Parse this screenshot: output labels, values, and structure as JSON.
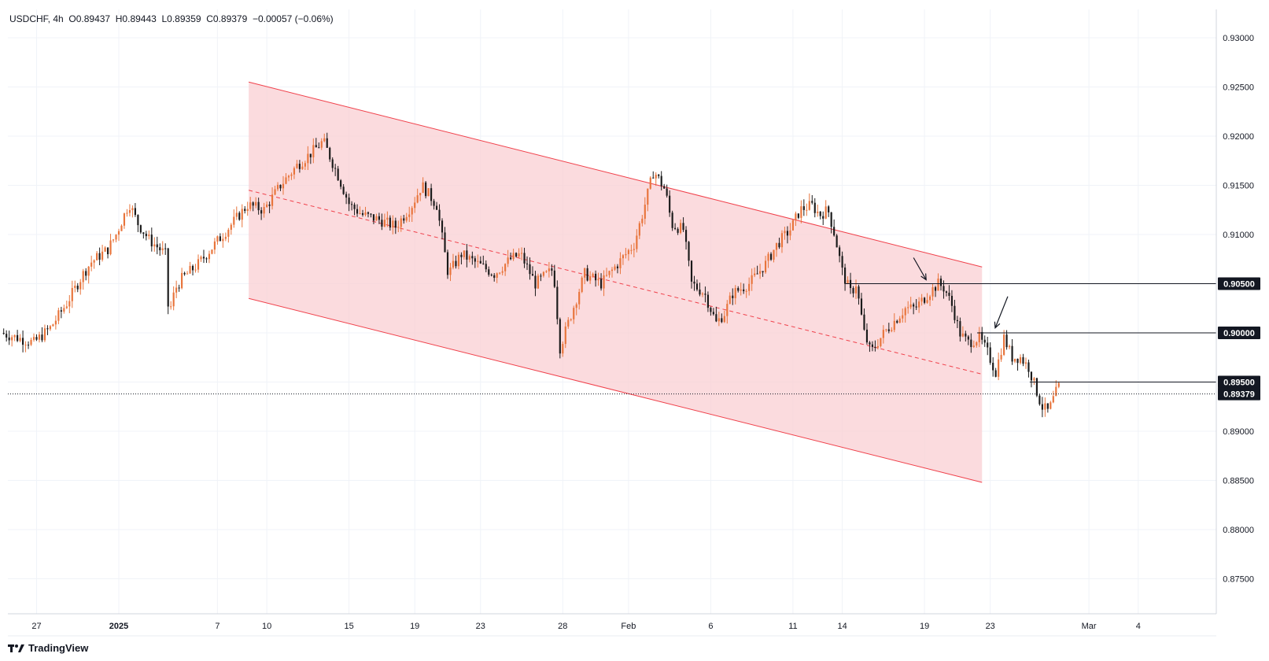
{
  "header": {
    "symbol": "USDCHF",
    "interval": "4h",
    "open": "O0.89437",
    "high": "H0.89443",
    "low": "L0.89359",
    "close": "C0.89379",
    "change": "−0.00057 (−0.06%)"
  },
  "branding": {
    "logo_text": "TradingView"
  },
  "colors": {
    "bull": "#e8743b",
    "bear": "#1a1a1a",
    "channel_fill": "#f9cfd3",
    "channel_line": "#f0414b",
    "grid": "#f0f3f8",
    "axis_text": "#131722"
  },
  "chart_data": {
    "type": "candlestick",
    "title": "USDCHF, 4h",
    "ylim": [
      0.8725,
      0.9335
    ],
    "x_ticks": [
      {
        "label": "27",
        "day": -5
      },
      {
        "label": "2025",
        "day": 0
      },
      {
        "label": "7",
        "day": 6
      },
      {
        "label": "10",
        "day": 9
      },
      {
        "label": "15",
        "day": 14
      },
      {
        "label": "19",
        "day": 18
      },
      {
        "label": "23",
        "day": 22
      },
      {
        "label": "28",
        "day": 27
      },
      {
        "label": "Feb",
        "day": 31
      },
      {
        "label": "6",
        "day": 36
      },
      {
        "label": "11",
        "day": 41
      },
      {
        "label": "14",
        "day": 44
      },
      {
        "label": "19",
        "day": 49
      },
      {
        "label": "23",
        "day": 53
      },
      {
        "label": "Mar",
        "day": 59
      },
      {
        "label": "4",
        "day": 62
      }
    ],
    "y_ticks": [
      "0.93000",
      "0.92500",
      "0.92000",
      "0.91500",
      "0.91000",
      "0.90500",
      "0.90000",
      "0.89500",
      "0.89000",
      "0.88500",
      "0.88000",
      "0.87500"
    ],
    "price_labels": [
      {
        "label": "0.90500",
        "value": 0.905
      },
      {
        "label": "0.90000",
        "value": 0.9
      },
      {
        "label": "0.89500",
        "value": 0.895
      },
      {
        "label": "0.89379",
        "value": 0.89379
      }
    ],
    "current_price": 0.89379,
    "horizontal_levels": [
      {
        "value": 0.905,
        "from_day": 44.2
      },
      {
        "value": 0.9,
        "from_day": 52.2
      },
      {
        "value": 0.895,
        "from_day": 55.4
      }
    ],
    "channel": {
      "start_day": 7.9,
      "end_day": 52.5,
      "upper": [
        0.9255,
        0.9067
      ],
      "middle": [
        0.9145,
        0.8958
      ],
      "lower": [
        0.9035,
        0.8848
      ]
    },
    "arrows": [
      {
        "direction": "down-right",
        "day": 49.1,
        "price": 0.9054
      },
      {
        "direction": "down-left",
        "day": 53.3,
        "price": 0.9005
      }
    ],
    "path_anchors": [
      [
        -7.0,
        0.9
      ],
      [
        -6.0,
        0.8995
      ],
      [
        -5.0,
        0.899
      ],
      [
        -4.0,
        0.9005
      ],
      [
        -3.0,
        0.903
      ],
      [
        -2.0,
        0.906
      ],
      [
        -1.5,
        0.9072
      ],
      [
        -0.5,
        0.9085
      ],
      [
        0.0,
        0.91
      ],
      [
        0.8,
        0.9132
      ],
      [
        1.3,
        0.9112
      ],
      [
        2.0,
        0.9095
      ],
      [
        3.0,
        0.908
      ],
      [
        3.2,
        0.9017
      ],
      [
        3.6,
        0.9045
      ],
      [
        4.0,
        0.9055
      ],
      [
        5.0,
        0.907
      ],
      [
        6.0,
        0.909
      ],
      [
        7.0,
        0.911
      ],
      [
        8.0,
        0.913
      ],
      [
        9.0,
        0.9125
      ],
      [
        10.0,
        0.915
      ],
      [
        11.0,
        0.917
      ],
      [
        12.0,
        0.9185
      ],
      [
        12.6,
        0.9195
      ],
      [
        13.5,
        0.916
      ],
      [
        14.2,
        0.913
      ],
      [
        15.0,
        0.912
      ],
      [
        16.0,
        0.9115
      ],
      [
        17.0,
        0.9108
      ],
      [
        18.0,
        0.913
      ],
      [
        18.6,
        0.915
      ],
      [
        19.5,
        0.913
      ],
      [
        20.2,
        0.906
      ],
      [
        21.0,
        0.908
      ],
      [
        22.0,
        0.907
      ],
      [
        23.0,
        0.906
      ],
      [
        24.0,
        0.9075
      ],
      [
        24.6,
        0.908
      ],
      [
        25.5,
        0.905
      ],
      [
        26.6,
        0.9065
      ],
      [
        27.0,
        0.8985
      ],
      [
        27.5,
        0.901
      ],
      [
        28.5,
        0.906
      ],
      [
        29.5,
        0.905
      ],
      [
        30.5,
        0.907
      ],
      [
        31.5,
        0.909
      ],
      [
        32.0,
        0.912
      ],
      [
        32.7,
        0.9165
      ],
      [
        33.4,
        0.9145
      ],
      [
        33.8,
        0.911
      ],
      [
        34.5,
        0.9105
      ],
      [
        35.0,
        0.905
      ],
      [
        35.8,
        0.904
      ],
      [
        36.5,
        0.901
      ],
      [
        37.0,
        0.902
      ],
      [
        37.5,
        0.904
      ],
      [
        38.5,
        0.905
      ],
      [
        39.5,
        0.907
      ],
      [
        40.2,
        0.909
      ],
      [
        41.0,
        0.9105
      ],
      [
        41.6,
        0.9125
      ],
      [
        42.3,
        0.913
      ],
      [
        42.8,
        0.912
      ],
      [
        43.3,
        0.9125
      ],
      [
        43.7,
        0.91
      ],
      [
        44.2,
        0.906
      ],
      [
        44.7,
        0.904
      ],
      [
        45.0,
        0.905
      ],
      [
        45.5,
        0.9
      ],
      [
        45.9,
        0.898
      ],
      [
        46.7,
        0.9
      ],
      [
        47.5,
        0.9015
      ],
      [
        48.0,
        0.9025
      ],
      [
        48.6,
        0.9025
      ],
      [
        49.4,
        0.904
      ],
      [
        50.0,
        0.905
      ],
      [
        50.4,
        0.9045
      ],
      [
        50.9,
        0.9025
      ],
      [
        51.3,
        0.9
      ],
      [
        51.8,
        0.899
      ],
      [
        52.5,
        0.8995
      ],
      [
        53.0,
        0.898
      ],
      [
        53.5,
        0.896
      ],
      [
        54.0,
        0.8995
      ],
      [
        54.5,
        0.8975
      ],
      [
        55.0,
        0.8975
      ],
      [
        55.5,
        0.8965
      ],
      [
        55.9,
        0.8945
      ],
      [
        56.3,
        0.8925
      ],
      [
        56.7,
        0.892
      ],
      [
        57.3,
        0.8945
      ]
    ]
  }
}
